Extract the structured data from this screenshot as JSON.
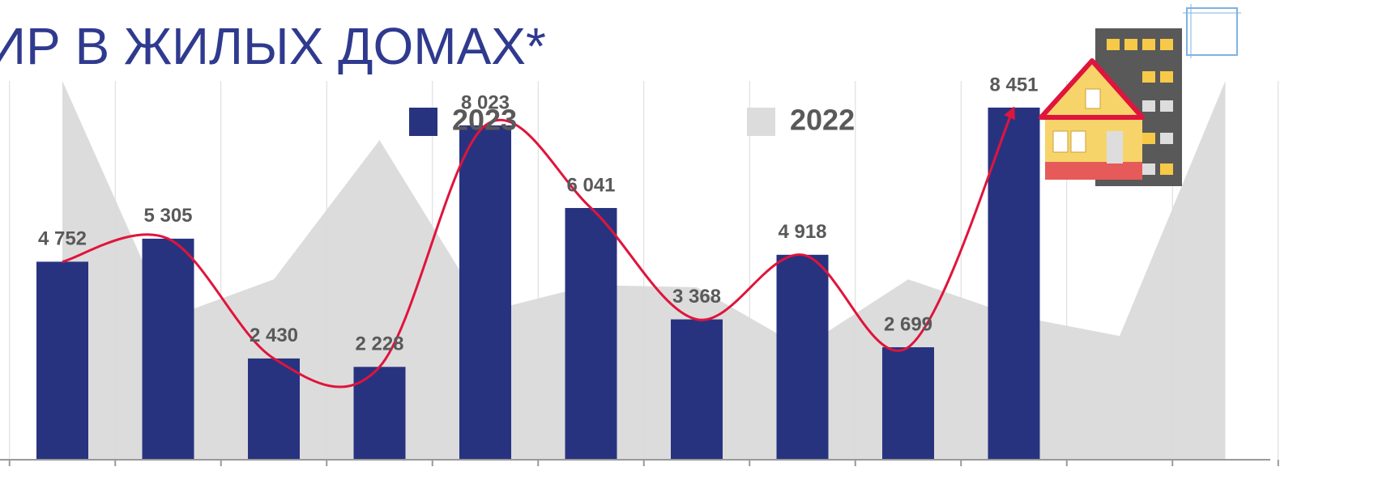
{
  "chart_data": {
    "type": "bar",
    "title": "ИР В ЖИЛЫХ ДОМАХ*",
    "categories": [
      null,
      null,
      null,
      null,
      null,
      null,
      null,
      null,
      null,
      null,
      null,
      null
    ],
    "series": [
      {
        "name": "2023",
        "color": "#283380",
        "type": "bar",
        "values": [
          4752,
          5305,
          2430,
          2228,
          8023,
          6041,
          3368,
          4918,
          2699,
          8451,
          null,
          null
        ],
        "value_labels": [
          "4 752",
          "5 305",
          "2 430",
          "2 228",
          "8 023",
          "6 041",
          "3 368",
          "4 918",
          "2 699",
          "8 451",
          null,
          null
        ]
      },
      {
        "name": "2022",
        "color": "#dcdcdc",
        "type": "area",
        "values": [
          9090,
          3400,
          4330,
          7670,
          3550,
          4190,
          4140,
          2680,
          4330,
          3460,
          2970,
          9090
        ]
      }
    ],
    "ylim": [
      0,
      9440
    ],
    "trend_color": "#e0143c"
  }
}
